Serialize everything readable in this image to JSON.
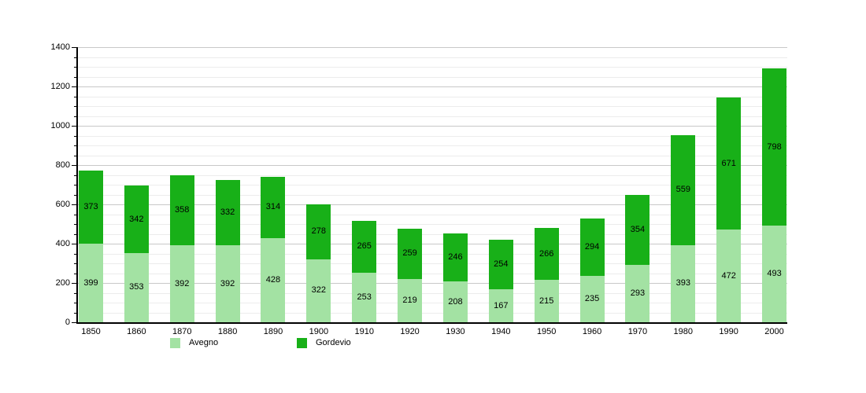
{
  "chart_data": {
    "type": "bar",
    "stacked": true,
    "title": "",
    "xlabel": "",
    "ylabel": "",
    "categories": [
      "1850",
      "1860",
      "1870",
      "1880",
      "1890",
      "1900",
      "1910",
      "1920",
      "1930",
      "1940",
      "1950",
      "1960",
      "1970",
      "1980",
      "1990",
      "2000"
    ],
    "series": [
      {
        "name": "Avegno",
        "color": "#A3E2A3",
        "values": [
          399,
          353,
          392,
          392,
          428,
          322,
          253,
          219,
          208,
          167,
          215,
          235,
          293,
          393,
          472,
          493
        ]
      },
      {
        "name": "Gordevio",
        "color": "#18B018",
        "values": [
          373,
          342,
          358,
          332,
          314,
          278,
          265,
          259,
          246,
          254,
          266,
          294,
          354,
          559,
          671,
          798
        ]
      }
    ],
    "ylim": [
      0,
      1400
    ],
    "y_major_step": 200,
    "y_minor_step": 50,
    "y_tick_labels": [
      "0",
      "200",
      "400",
      "600",
      "800",
      "1000",
      "1200",
      "1400"
    ],
    "grid": true,
    "legend_position": "bottom",
    "value_labels_shown": true
  },
  "colors": {
    "background": "#ffffff",
    "axis": "#000000",
    "major_grid": "#c8c8c8",
    "minor_grid": "#ececec",
    "label_text": "#000000"
  }
}
